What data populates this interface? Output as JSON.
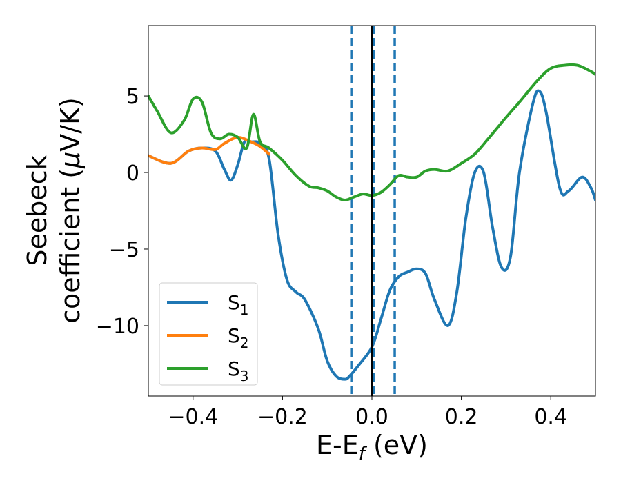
{
  "chart_data": {
    "type": "line",
    "title": "",
    "xlabel": "E-E",
    "xlabel_sub": "f",
    "xlabel_unit": " (eV)",
    "ylabel_line1": "Seebeck",
    "ylabel_line2_prefix": "coefficient  (",
    "ylabel_mu": "μ",
    "ylabel_line2_suffix": "V/K)",
    "xlim": [
      -0.5,
      0.5
    ],
    "ylim": [
      -14.6,
      9.6
    ],
    "xticks": [
      -0.4,
      -0.2,
      0.0,
      0.2,
      0.4
    ],
    "xtick_labels": [
      "−0.4",
      "−0.2",
      "0.0",
      "0.2",
      "0.4"
    ],
    "yticks": [
      -10,
      -5,
      0,
      5
    ],
    "ytick_labels": [
      "−10",
      "−5",
      "0",
      "5"
    ],
    "grid": false,
    "legend_location": "lower-left",
    "vlines": [
      {
        "x": -0.046,
        "style": "dashed",
        "color": "#1f77b4"
      },
      {
        "x": 0.004,
        "style": "dashed",
        "color": "#1f77b4"
      },
      {
        "x": 0.051,
        "style": "dashed",
        "color": "#1f77b4"
      },
      {
        "x": 0.0,
        "style": "solid",
        "color": "#000000"
      }
    ],
    "series": [
      {
        "name": "S",
        "sub": "1",
        "color": "#1f77b4",
        "x": [
          -0.5,
          -0.45,
          -0.41,
          -0.38,
          -0.35,
          -0.33,
          -0.315,
          -0.3,
          -0.285,
          -0.27,
          -0.25,
          -0.23,
          -0.21,
          -0.19,
          -0.17,
          -0.15,
          -0.12,
          -0.1,
          -0.08,
          -0.06,
          -0.05,
          -0.03,
          0.0,
          0.02,
          0.04,
          0.06,
          0.08,
          0.1,
          0.12,
          0.14,
          0.17,
          0.19,
          0.21,
          0.23,
          0.25,
          0.27,
          0.29,
          0.31,
          0.33,
          0.36,
          0.375,
          0.39,
          0.42,
          0.44,
          0.47,
          0.49,
          0.5
        ],
        "y": [
          1.1,
          0.6,
          1.4,
          1.6,
          1.4,
          0.2,
          -0.5,
          0.5,
          2.0,
          2.0,
          1.9,
          0.9,
          -4.0,
          -7.0,
          -7.8,
          -8.3,
          -10.2,
          -12.3,
          -13.3,
          -13.5,
          -13.3,
          -12.6,
          -11.4,
          -9.6,
          -7.7,
          -6.8,
          -6.5,
          -6.3,
          -6.6,
          -8.3,
          -10.0,
          -7.8,
          -3.0,
          0.0,
          0.0,
          -3.6,
          -6.2,
          -5.5,
          0.0,
          4.5,
          5.3,
          3.9,
          -1.0,
          -1.2,
          -0.3,
          -1.0,
          -1.8
        ]
      },
      {
        "name": "S",
        "sub": "2",
        "color": "#ff7f0e",
        "x": [
          -0.5,
          -0.45,
          -0.41,
          -0.38,
          -0.35,
          -0.33,
          -0.3,
          -0.27,
          -0.25,
          -0.23
        ],
        "y": [
          1.1,
          0.6,
          1.4,
          1.6,
          1.5,
          1.9,
          2.3,
          2.0,
          1.7,
          1.2
        ]
      },
      {
        "name": "S",
        "sub": "3",
        "color": "#2ca02c",
        "x": [
          -0.5,
          -0.48,
          -0.45,
          -0.42,
          -0.4,
          -0.38,
          -0.36,
          -0.34,
          -0.32,
          -0.3,
          -0.28,
          -0.265,
          -0.25,
          -0.23,
          -0.2,
          -0.17,
          -0.14,
          -0.12,
          -0.1,
          -0.08,
          -0.06,
          -0.04,
          -0.02,
          0.0,
          0.02,
          0.04,
          0.06,
          0.08,
          0.1,
          0.12,
          0.14,
          0.17,
          0.2,
          0.23,
          0.26,
          0.3,
          0.33,
          0.37,
          0.4,
          0.43,
          0.46,
          0.49,
          0.5
        ],
        "y": [
          5.0,
          4.0,
          2.6,
          3.4,
          4.8,
          4.6,
          2.6,
          2.2,
          2.5,
          2.3,
          1.6,
          3.8,
          2.0,
          1.6,
          0.8,
          -0.2,
          -0.9,
          -1.0,
          -1.2,
          -1.6,
          -1.8,
          -1.6,
          -1.4,
          -1.5,
          -1.3,
          -0.8,
          -0.2,
          -0.3,
          -0.3,
          0.1,
          0.2,
          0.1,
          0.6,
          1.2,
          2.2,
          3.6,
          4.6,
          6.0,
          6.8,
          7.0,
          7.0,
          6.6,
          6.4
        ]
      }
    ]
  }
}
